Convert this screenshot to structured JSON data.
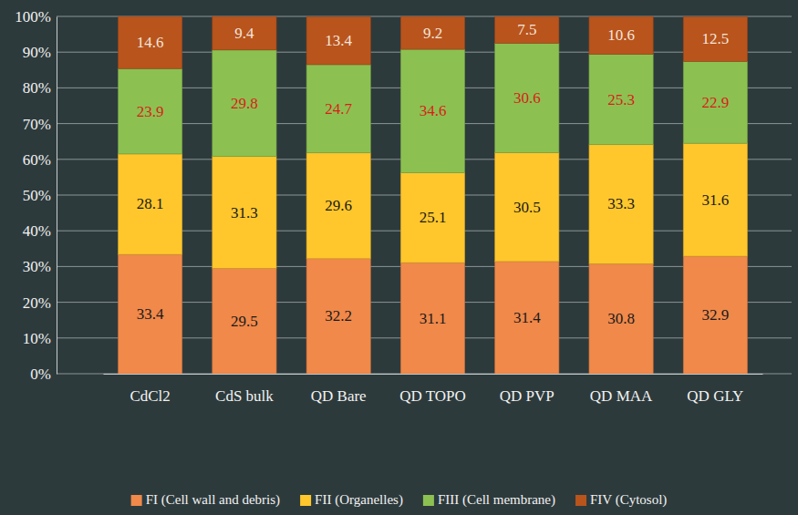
{
  "chart_data": {
    "type": "bar",
    "stacked": true,
    "data_labels": true,
    "grid": true,
    "legend": "bottom",
    "categories": [
      "CdCl2",
      "CdS bulk",
      "QD Bare",
      "QD TOPO",
      "QD PVP",
      "QD MAA",
      "QD GLY"
    ],
    "ylim": [
      0,
      100
    ],
    "yticks": [
      {
        "value": 0,
        "label": "0%"
      },
      {
        "value": 10,
        "label": "10%"
      },
      {
        "value": 20,
        "label": "20%"
      },
      {
        "value": 30,
        "label": "30%"
      },
      {
        "value": 40,
        "label": "40%"
      },
      {
        "value": 50,
        "label": "50%"
      },
      {
        "value": 60,
        "label": "60%"
      },
      {
        "value": 70,
        "label": "70%"
      },
      {
        "value": 80,
        "label": "80%"
      },
      {
        "value": 90,
        "label": "90%"
      },
      {
        "value": 100,
        "label": "100%"
      }
    ],
    "series": [
      {
        "name": "FI (Cell wall and debris)",
        "color": "#f0894a",
        "values": [
          33.4,
          29.5,
          32.2,
          31.1,
          31.4,
          30.8,
          32.9
        ]
      },
      {
        "name": "FII (Organelles)",
        "color": "#ffc72c",
        "values": [
          28.1,
          31.3,
          29.6,
          25.1,
          30.5,
          33.3,
          31.6
        ]
      },
      {
        "name": "FIII (Cell membrane)",
        "color": "#8cc152",
        "values": [
          23.9,
          29.8,
          24.7,
          34.6,
          30.6,
          25.3,
          22.9
        ]
      },
      {
        "name": "FIV (Cytosol)",
        "color": "#b9541d",
        "values": [
          14.6,
          9.4,
          13.4,
          9.2,
          7.5,
          10.6,
          12.5
        ]
      }
    ]
  }
}
